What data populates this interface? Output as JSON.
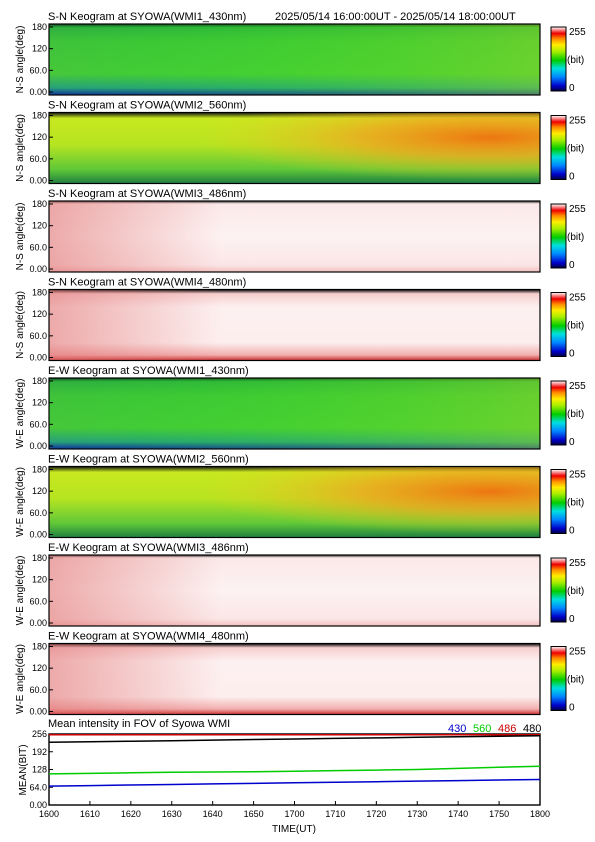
{
  "header": {
    "time_range": "2025/05/14 16:00:00UT - 2025/05/14 18:00:00UT"
  },
  "colorbar": {
    "max_label": "255",
    "unit_label": "(bit)",
    "min_label": "0"
  },
  "panels": [
    {
      "title": "S-N Keogram at SYOWA(WMI1_430nm)",
      "ylabel": "N-S angle(deg)",
      "yticks": [
        "180",
        "120",
        "60.0",
        "0.00"
      ],
      "colormap": "green"
    },
    {
      "title": "S-N Keogram at SYOWA(WMI2_560nm)",
      "ylabel": "N-S angle(deg)",
      "yticks": [
        "180",
        "120",
        "60.0",
        "0.00"
      ],
      "colormap": "green-orange"
    },
    {
      "title": "S-N Keogram at SYOWA(WMI3_486nm)",
      "ylabel": "N-S angle(deg)",
      "yticks": [
        "180",
        "120",
        "60.0",
        "0.00"
      ],
      "colormap": "pale-pink"
    },
    {
      "title": "S-N Keogram at SYOWA(WMI4_480nm)",
      "ylabel": "N-S angle(deg)",
      "yticks": [
        "180",
        "120",
        "60.0",
        "0.00"
      ],
      "colormap": "pale-pink-edges"
    },
    {
      "title": "E-W Keogram at SYOWA(WMI1_430nm)",
      "ylabel": "W-E angle(deg)",
      "yticks": [
        "180",
        "120",
        "60.0",
        "0.00"
      ],
      "colormap": "green"
    },
    {
      "title": "E-W Keogram at SYOWA(WMI2_560nm)",
      "ylabel": "W-E angle(deg)",
      "yticks": [
        "180",
        "120",
        "60.0",
        "0.00"
      ],
      "colormap": "green-orange"
    },
    {
      "title": "E-W Keogram at SYOWA(WMI3_486nm)",
      "ylabel": "W-E angle(deg)",
      "yticks": [
        "180",
        "120",
        "60.0",
        "0.00"
      ],
      "colormap": "pale-pink"
    },
    {
      "title": "E-W Keogram at SYOWA(WMI4_480nm)",
      "ylabel": "W-E angle(deg)",
      "yticks": [
        "180",
        "120",
        "60.0",
        "0.00"
      ],
      "colormap": "pale-pink-edges"
    }
  ],
  "legend": [
    {
      "name": "430",
      "color": "#0000cc"
    },
    {
      "name": "560",
      "color": "#00cc00"
    },
    {
      "name": "486",
      "color": "#cc0000"
    },
    {
      "name": "480",
      "color": "#000000"
    }
  ],
  "chart_data": {
    "type": "line",
    "title": "Mean intensity in FOV of Syowa WMI",
    "xlabel": "TIME(UT)",
    "ylabel": "MEAN(BIT)",
    "xticks": [
      "1600",
      "1610",
      "1620",
      "1630",
      "1640",
      "1650",
      "1700",
      "1710",
      "1720",
      "1730",
      "1740",
      "1750",
      "1800"
    ],
    "yticks": [
      "256",
      "192",
      "128",
      "64.0",
      "0.00"
    ],
    "xlim": [
      0,
      120
    ],
    "ylim": [
      0,
      256
    ],
    "x": [
      0,
      10,
      20,
      30,
      40,
      50,
      60,
      70,
      80,
      90,
      100,
      110,
      120
    ],
    "series": [
      {
        "name": "430",
        "color": "#0000cc",
        "values": [
          68,
          70,
          72,
          74,
          76,
          78,
          80,
          82,
          84,
          86,
          88,
          90,
          92
        ]
      },
      {
        "name": "560",
        "color": "#00cc00",
        "values": [
          112,
          114,
          116,
          118,
          119,
          120,
          122,
          124,
          126,
          128,
          132,
          136,
          140
        ]
      },
      {
        "name": "486",
        "color": "#cc0000",
        "values": [
          253,
          253,
          253,
          253,
          253,
          253,
          253,
          253,
          253,
          253,
          253,
          253,
          253
        ]
      },
      {
        "name": "480",
        "color": "#000000",
        "values": [
          226,
          228,
          230,
          232,
          234,
          236,
          238,
          240,
          242,
          244,
          246,
          248,
          250
        ]
      }
    ]
  }
}
